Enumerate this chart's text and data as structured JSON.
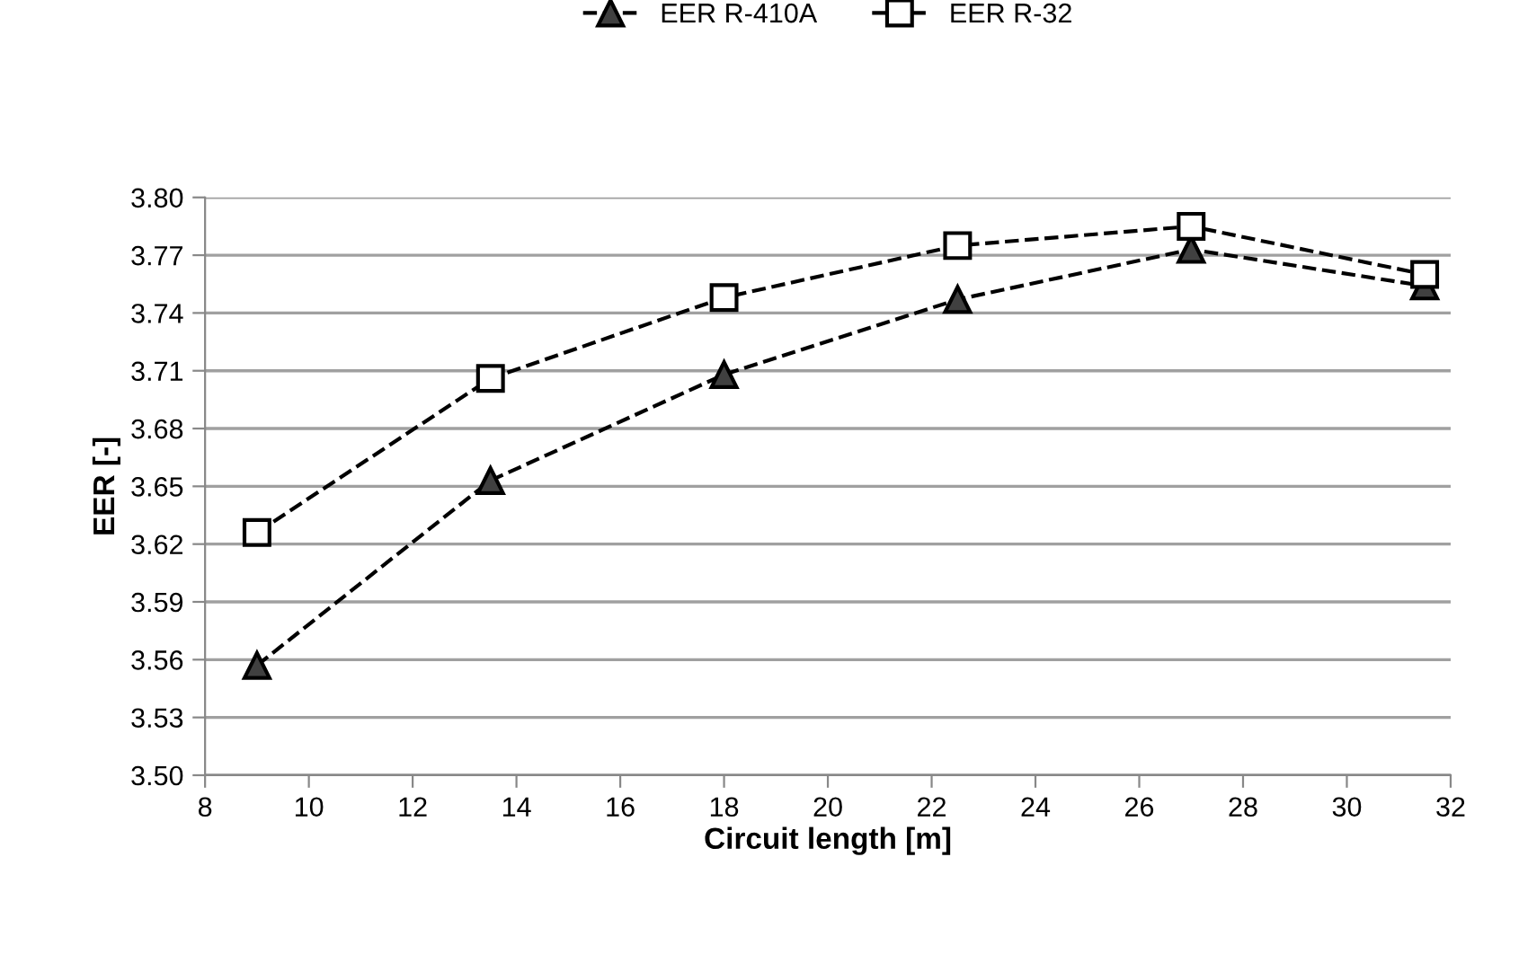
{
  "chart_data": {
    "type": "line",
    "xlabel": "Circuit length [m]",
    "ylabel": "EER [-]",
    "x": [
      9,
      13.5,
      18,
      22.5,
      27,
      31.5
    ],
    "series": [
      {
        "name": "EER R-410A",
        "color": "#404040",
        "marker": "triangle",
        "values": [
          3.557,
          3.653,
          3.708,
          3.747,
          3.773,
          3.754
        ]
      },
      {
        "name": "EER R-32",
        "color": "#ffffff",
        "marker": "square",
        "values": [
          3.626,
          3.706,
          3.748,
          3.775,
          3.785,
          3.76
        ]
      }
    ],
    "xlim": [
      8,
      32
    ],
    "xticks": [
      8,
      10,
      12,
      14,
      16,
      18,
      20,
      22,
      24,
      26,
      28,
      30,
      32
    ],
    "ylim": [
      3.5,
      3.8
    ],
    "yticks": [
      {
        "value": 3.5,
        "label": "3.50"
      },
      {
        "value": 3.53,
        "label": "3.53"
      },
      {
        "value": 3.56,
        "label": "3.56"
      },
      {
        "value": 3.59,
        "label": "3.59"
      },
      {
        "value": 3.62,
        "label": "3.62"
      },
      {
        "value": 3.65,
        "label": "3.65"
      },
      {
        "value": 3.68,
        "label": "3.68"
      },
      {
        "value": 3.71,
        "label": "3.71"
      },
      {
        "value": 3.74,
        "label": "3.74"
      },
      {
        "value": 3.77,
        "label": "3.77"
      },
      {
        "value": 3.8,
        "label": "3.80"
      }
    ],
    "grid": "y",
    "legend": "top",
    "line_style": "dashed"
  }
}
